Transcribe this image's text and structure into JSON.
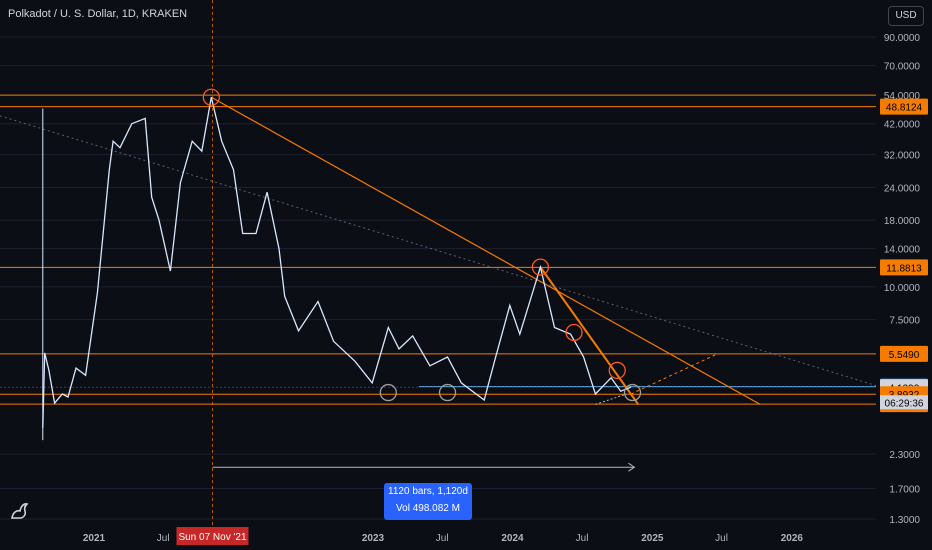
{
  "header": {
    "title": "Polkadot / U. S. Dollar, 1D, KRAKEN",
    "currency_button": "USD"
  },
  "chart_data": {
    "type": "line",
    "title": "Polkadot / U. S. Dollar, 1D, KRAKEN",
    "y_scale": "log",
    "ylim": [
      1.2,
      120
    ],
    "y_ticks": [
      90,
      70,
      54,
      42,
      32,
      24,
      18,
      14,
      10,
      7.5,
      2.3,
      1.7,
      1.3
    ],
    "y_tick_labels": [
      "90.0000",
      "70.0000",
      "54.0000",
      "42.0000",
      "32.0000",
      "24.0000",
      "18.0000",
      "14.0000",
      "10.0000",
      "7.5000",
      "2.3000",
      "1.7000",
      "1.3000"
    ],
    "x_ticks": [
      "2021",
      "Jul",
      "2023",
      "Jul",
      "2024",
      "Jul",
      "2025",
      "Jul",
      "2026"
    ],
    "x_tick_dates": [
      "2021-01-01",
      "2021-07-01",
      "2023-01-01",
      "2023-07-01",
      "2024-01-01",
      "2024-07-01",
      "2025-01-01",
      "2025-07-01",
      "2026-01-01"
    ],
    "crosshair_date_label": "Sun 07 Nov '21",
    "series": [
      {
        "values_by_date": [
          [
            "2020-08-20",
            2.9
          ],
          [
            "2020-08-25",
            5.6
          ],
          [
            "2020-09-05",
            4.8
          ],
          [
            "2020-09-20",
            3.6
          ],
          [
            "2020-10-10",
            3.9
          ],
          [
            "2020-10-25",
            3.8
          ],
          [
            "2020-11-15",
            4.9
          ],
          [
            "2020-12-10",
            4.6
          ],
          [
            "2021-01-10",
            9.5
          ],
          [
            "2021-02-10",
            28
          ],
          [
            "2021-02-20",
            36
          ],
          [
            "2021-03-10",
            34
          ],
          [
            "2021-04-10",
            42
          ],
          [
            "2021-05-15",
            44
          ],
          [
            "2021-06-01",
            22
          ],
          [
            "2021-06-20",
            18
          ],
          [
            "2021-07-20",
            11.5
          ],
          [
            "2021-08-15",
            25
          ],
          [
            "2021-09-15",
            36
          ],
          [
            "2021-10-10",
            33
          ],
          [
            "2021-11-04",
            53
          ],
          [
            "2021-12-01",
            36
          ],
          [
            "2022-01-01",
            28
          ],
          [
            "2022-01-25",
            16
          ],
          [
            "2022-03-01",
            16
          ],
          [
            "2022-03-30",
            23
          ],
          [
            "2022-04-30",
            14
          ],
          [
            "2022-05-15",
            9.2
          ],
          [
            "2022-06-20",
            6.8
          ],
          [
            "2022-08-10",
            8.8
          ],
          [
            "2022-09-20",
            6.2
          ],
          [
            "2022-11-15",
            5.2
          ],
          [
            "2022-12-30",
            4.3
          ],
          [
            "2023-02-10",
            7.0
          ],
          [
            "2023-03-10",
            5.8
          ],
          [
            "2023-04-15",
            6.5
          ],
          [
            "2023-05-30",
            5.0
          ],
          [
            "2023-07-15",
            5.4
          ],
          [
            "2023-08-20",
            4.3
          ],
          [
            "2023-10-19",
            3.7
          ],
          [
            "2023-11-15",
            5.2
          ],
          [
            "2023-12-25",
            8.5
          ],
          [
            "2024-01-20",
            6.6
          ],
          [
            "2024-03-14",
            11.9
          ],
          [
            "2024-04-20",
            7.0
          ],
          [
            "2024-06-01",
            6.6
          ],
          [
            "2024-07-05",
            5.4
          ],
          [
            "2024-08-05",
            3.9
          ],
          [
            "2024-09-15",
            4.5
          ],
          [
            "2024-10-10",
            4.0
          ],
          [
            "2024-11-06",
            4.14
          ]
        ]
      }
    ],
    "horizontal_levels": [
      {
        "label": "54.0000",
        "value": 54,
        "color": "#f57c00"
      },
      {
        "label": "48.8124",
        "value": 48.8124,
        "color": "#f57c00"
      },
      {
        "label": "11.8813",
        "value": 11.8813,
        "color": "#f57c00"
      },
      {
        "label": "5.5490",
        "value": 5.549,
        "color": "#f57c00"
      },
      {
        "label": "4.1643",
        "value": 4.1643,
        "color": "#64b5f6"
      },
      {
        "label": "4.1392",
        "value": 4.1392,
        "color": "#3a3f4b"
      },
      {
        "label": "3.8932",
        "value": 3.8932,
        "color": "#f57c00"
      },
      {
        "label": "3.5685",
        "value": 3.5685,
        "color": "#f57c00"
      }
    ],
    "countdown_label": "06:29:36",
    "measure_box": {
      "line1": "1120 bars, 1,120d",
      "line2": "Vol 498.082 M"
    }
  },
  "colors": {
    "background": "#0c0e15",
    "price_line": "#d8e8ff",
    "orange": "#f57c00",
    "blue_level": "#64b5f6",
    "marker_red": "#ff5722"
  }
}
